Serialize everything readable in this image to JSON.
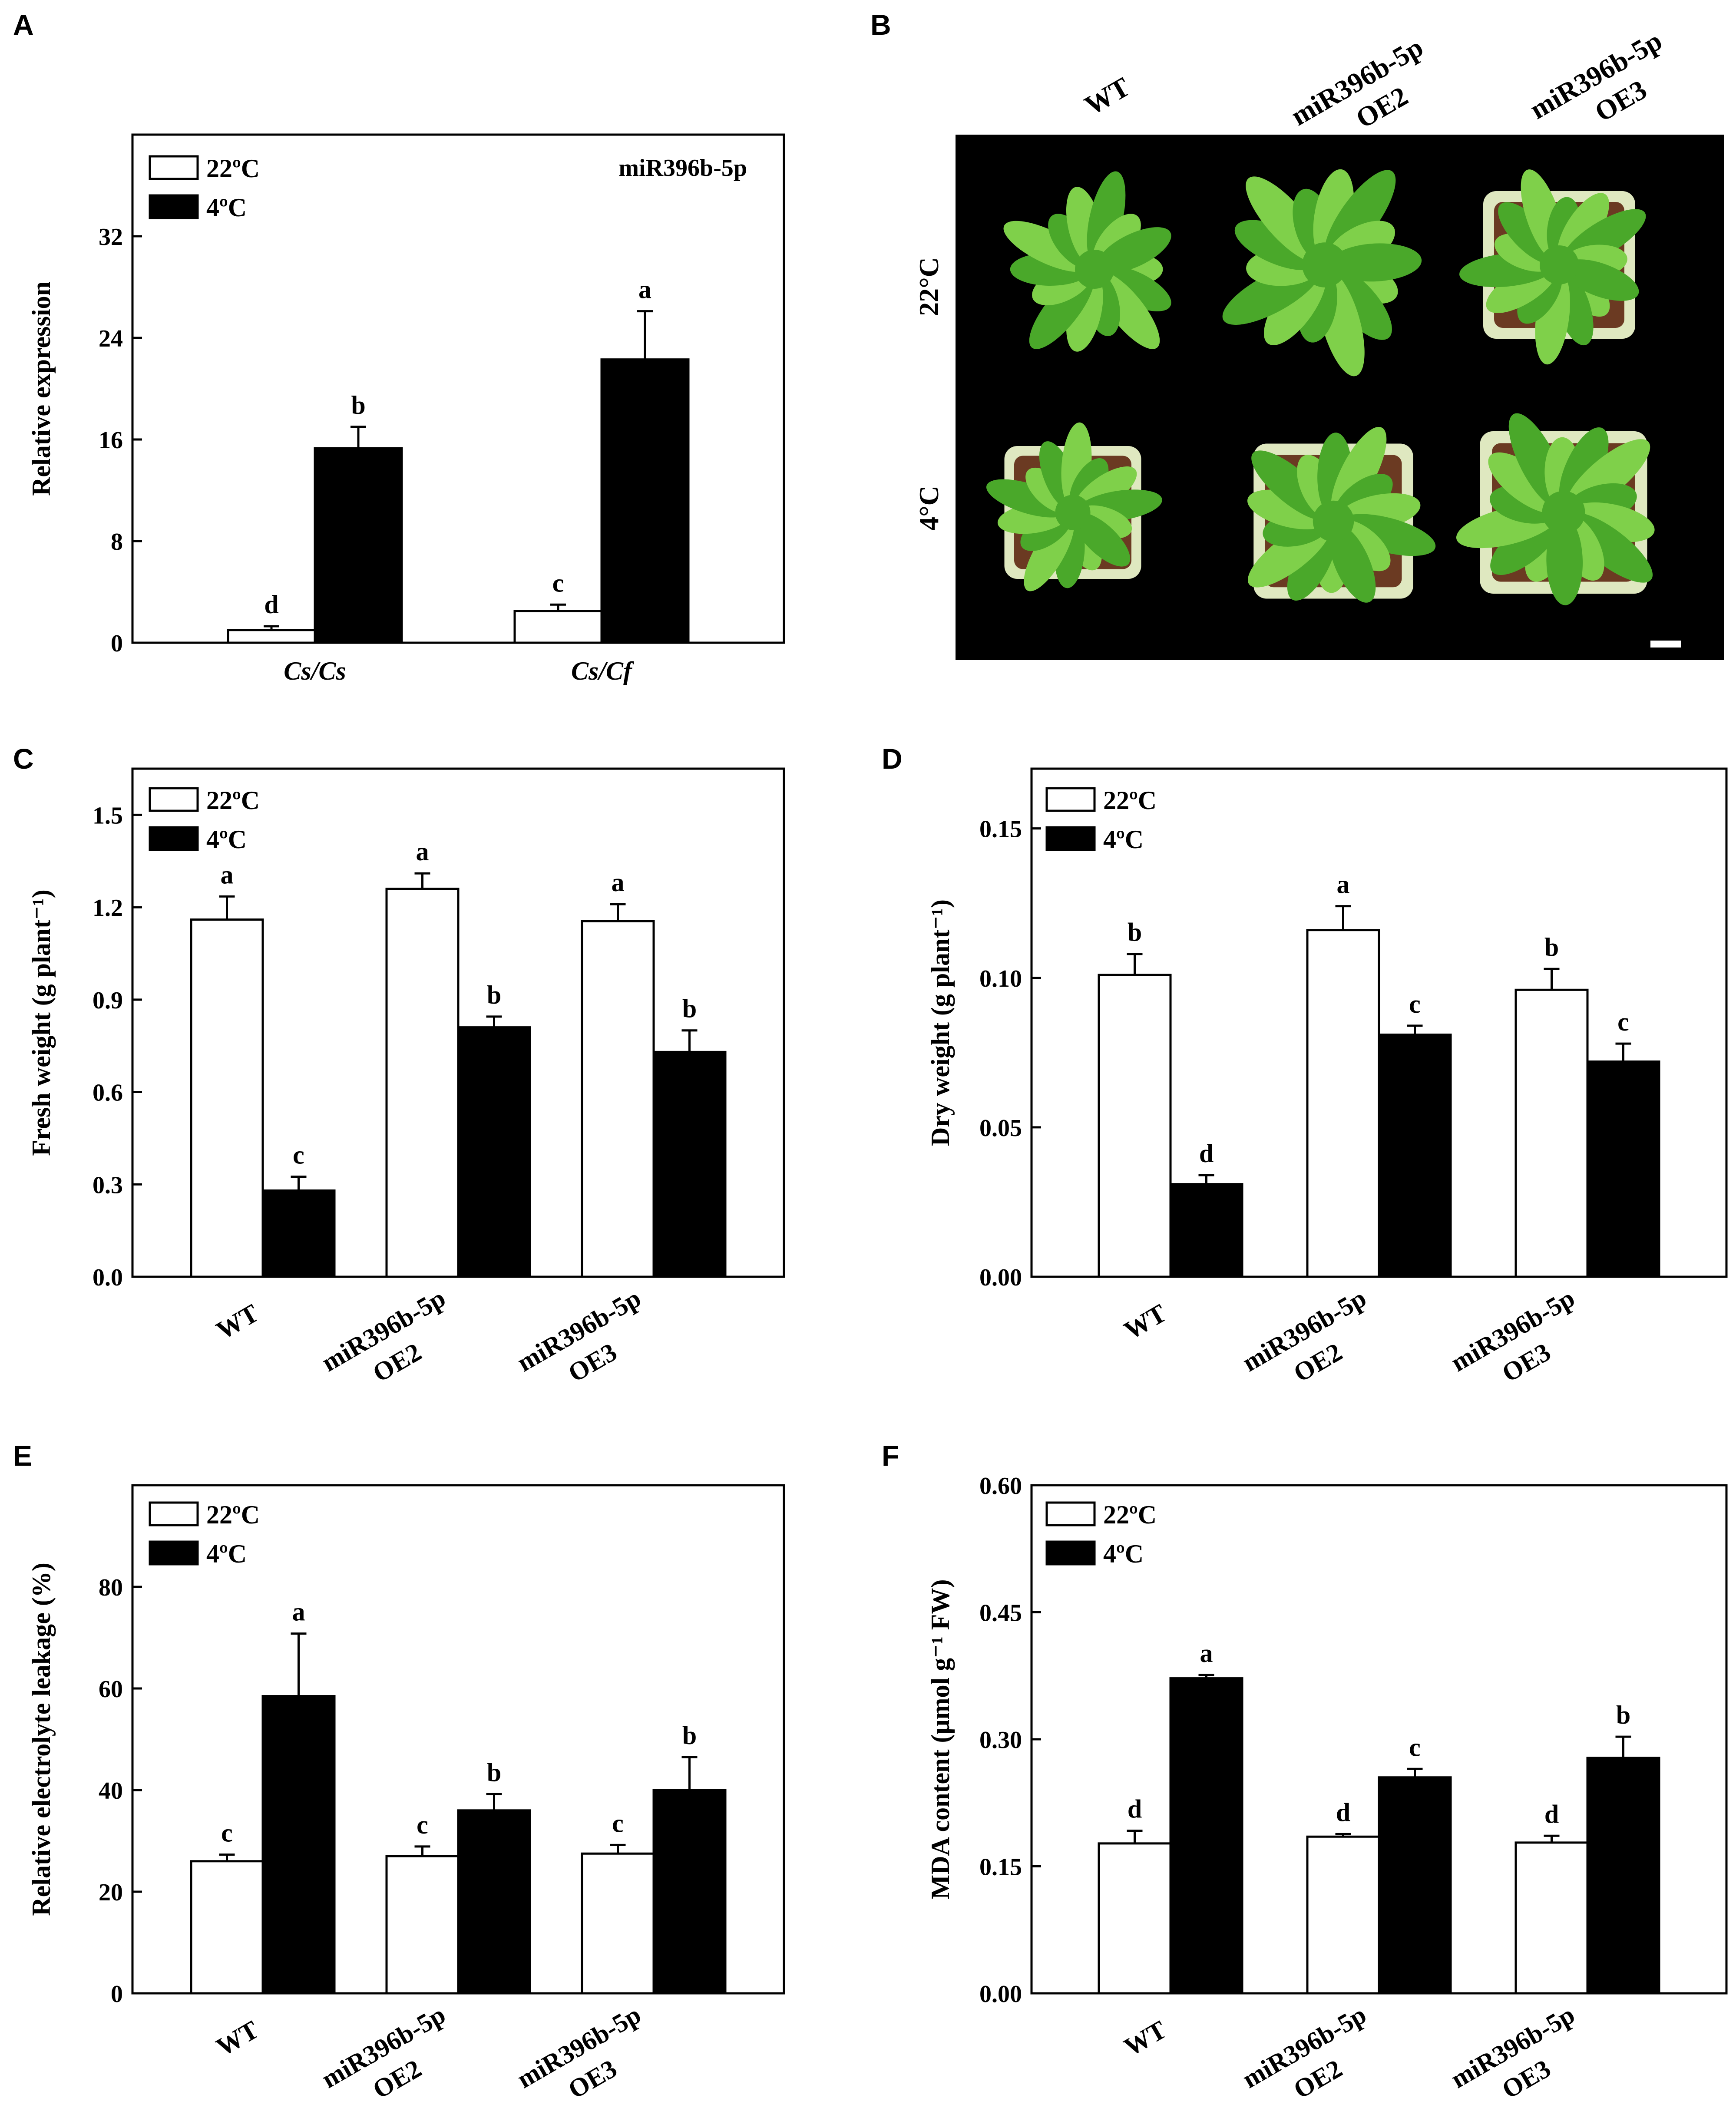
{
  "colors": {
    "bar_warm": "#ffffff",
    "bar_cold": "#000000",
    "photo_bg": "#000000",
    "leaf": "#4aa82a",
    "leaf_light": "#7fd04a",
    "pot_light": "#dfe8c0",
    "soil": "#6b3a22"
  },
  "panel_b": {
    "letter": "B",
    "columns": [
      {
        "line1": "WT",
        "line2": ""
      },
      {
        "line1": "miR396b-5p",
        "line2": "OE2"
      },
      {
        "line1": "miR396b-5p",
        "line2": "OE3"
      }
    ],
    "rows": [
      "22°C",
      "4°C"
    ]
  },
  "chart_data": [
    {
      "letter": "A",
      "type": "bar",
      "title": "miR396b-5p",
      "ylabel": "Relative expression",
      "ylim": [
        0,
        40
      ],
      "yticks": [
        0,
        8,
        16,
        24,
        32
      ],
      "categories": [
        {
          "line1": "Cs/Cs",
          "line2": ""
        },
        {
          "line1": "Cs/Cf",
          "line2": ""
        }
      ],
      "category_italic": true,
      "category_rotated": false,
      "legend": [
        "22ºC",
        "4ºC"
      ],
      "series": [
        {
          "name": "22ºC",
          "color": "#ffffff",
          "values": [
            1.0,
            2.5
          ],
          "errors": [
            0.3,
            0.5
          ],
          "labels": [
            "d",
            "c"
          ]
        },
        {
          "name": "4ºC",
          "color": "#000000",
          "values": [
            15.3,
            22.3
          ],
          "errors": [
            1.7,
            3.8
          ],
          "labels": [
            "b",
            "a"
          ]
        }
      ]
    },
    {
      "letter": "C",
      "type": "bar",
      "ylabel": "Fresh weight (g plant⁻¹)",
      "ylim": [
        0,
        1.65
      ],
      "yticks": [
        "0.0",
        "0.3",
        "0.6",
        "0.9",
        "1.2",
        "1.5"
      ],
      "categories": [
        {
          "line1": "WT",
          "line2": ""
        },
        {
          "line1": "miR396b-5p",
          "line2": "OE2"
        },
        {
          "line1": "miR396b-5p",
          "line2": "OE3"
        }
      ],
      "category_italic": false,
      "category_rotated": true,
      "legend": [
        "22ºC",
        "4ºC"
      ],
      "series": [
        {
          "name": "22ºC",
          "color": "#ffffff",
          "values": [
            1.16,
            1.26,
            1.155
          ],
          "errors": [
            0.075,
            0.05,
            0.055
          ],
          "labels": [
            "a",
            "a",
            "a"
          ]
        },
        {
          "name": "4ºC",
          "color": "#000000",
          "values": [
            0.28,
            0.81,
            0.73
          ],
          "errors": [
            0.045,
            0.035,
            0.07
          ],
          "labels": [
            "c",
            "b",
            "b"
          ]
        }
      ]
    },
    {
      "letter": "D",
      "type": "bar",
      "ylabel": "Dry weight (g plant⁻¹)",
      "ylim": [
        0,
        0.17
      ],
      "yticks": [
        "0.00",
        "0.05",
        "0.10",
        "0.15"
      ],
      "categories": [
        {
          "line1": "WT",
          "line2": ""
        },
        {
          "line1": "miR396b-5p",
          "line2": "OE2"
        },
        {
          "line1": "miR396b-5p",
          "line2": "OE3"
        }
      ],
      "category_italic": false,
      "category_rotated": true,
      "legend": [
        "22ºC",
        "4ºC"
      ],
      "series": [
        {
          "name": "22ºC",
          "color": "#ffffff",
          "values": [
            0.101,
            0.116,
            0.096
          ],
          "errors": [
            0.007,
            0.008,
            0.007
          ],
          "labels": [
            "b",
            "a",
            "b"
          ]
        },
        {
          "name": "4ºC",
          "color": "#000000",
          "values": [
            0.031,
            0.081,
            0.072
          ],
          "errors": [
            0.003,
            0.003,
            0.006
          ],
          "labels": [
            "d",
            "c",
            "c"
          ]
        }
      ]
    },
    {
      "letter": "E",
      "type": "bar",
      "ylabel": "Relative electrolyte leakage (%)",
      "ylim": [
        0,
        100
      ],
      "yticks": [
        0,
        20,
        40,
        60,
        80
      ],
      "categories": [
        {
          "line1": "WT",
          "line2": ""
        },
        {
          "line1": "miR396b-5p",
          "line2": "OE2"
        },
        {
          "line1": "miR396b-5p",
          "line2": "OE3"
        }
      ],
      "category_italic": false,
      "category_rotated": true,
      "legend": [
        "22ºC",
        "4ºC"
      ],
      "series": [
        {
          "name": "22ºC",
          "color": "#ffffff",
          "values": [
            26,
            27,
            27.5
          ],
          "errors": [
            1.3,
            1.9,
            1.7
          ],
          "labels": [
            "c",
            "c",
            "c"
          ]
        },
        {
          "name": "4ºC",
          "color": "#000000",
          "values": [
            58.5,
            36,
            40
          ],
          "errors": [
            12.3,
            3.2,
            6.5
          ],
          "labels": [
            "a",
            "b",
            "b"
          ]
        }
      ]
    },
    {
      "letter": "F",
      "type": "bar",
      "ylabel": "MDA content (μmol g⁻¹ FW)",
      "ylim": [
        0,
        0.6
      ],
      "yticks": [
        "0.00",
        "0.15",
        "0.30",
        "0.45",
        "0.60"
      ],
      "categories": [
        {
          "line1": "WT",
          "line2": ""
        },
        {
          "line1": "miR396b-5p",
          "line2": "OE2"
        },
        {
          "line1": "miR396b-5p",
          "line2": "OE3"
        }
      ],
      "category_italic": false,
      "category_rotated": true,
      "legend": [
        "22ºC",
        "4ºC"
      ],
      "series": [
        {
          "name": "22ºC",
          "color": "#ffffff",
          "values": [
            0.177,
            0.185,
            0.178
          ],
          "errors": [
            0.015,
            0.003,
            0.008
          ],
          "labels": [
            "d",
            "d",
            "d"
          ]
        },
        {
          "name": "4ºC",
          "color": "#000000",
          "values": [
            0.372,
            0.255,
            0.278
          ],
          "errors": [
            0.004,
            0.01,
            0.025
          ],
          "labels": [
            "a",
            "c",
            "b"
          ]
        }
      ]
    }
  ]
}
